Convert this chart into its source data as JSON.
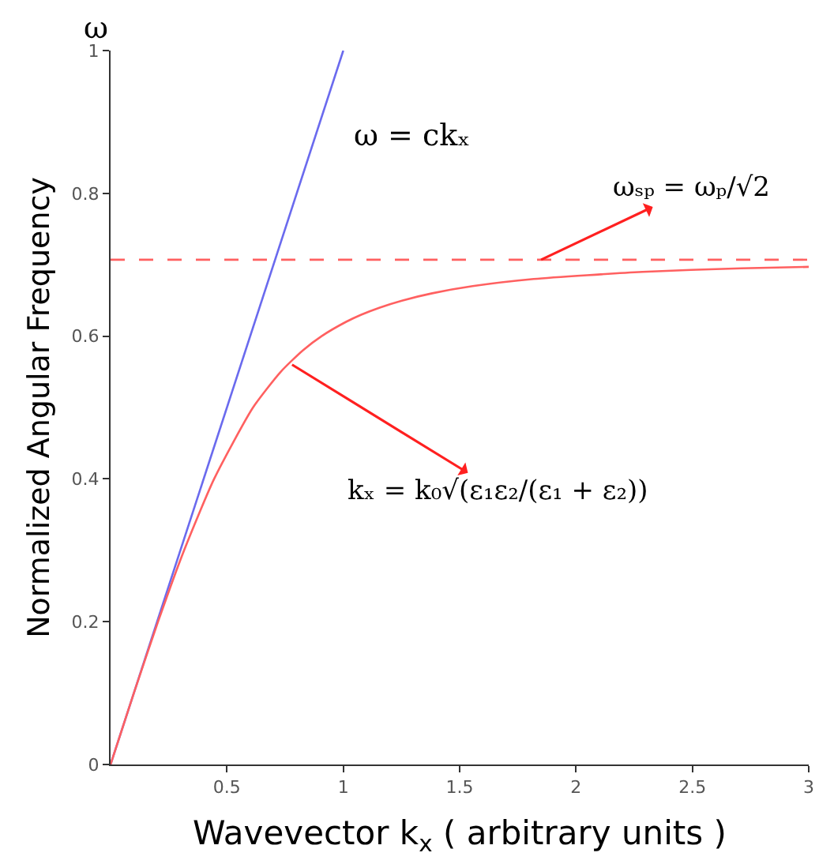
{
  "chart_data": {
    "type": "line",
    "xlabel": "Wavevector k$_{x}$ ( arbitrary units )",
    "ylabel": "Normalized Angular Frequency",
    "xlim": [
      0,
      3
    ],
    "xticks": [
      0.5,
      1,
      1.5,
      2,
      2.5,
      3
    ],
    "ylim": [
      0,
      1
    ],
    "yticks": [
      0,
      0.2,
      0.4,
      0.6,
      0.8,
      1
    ],
    "marker": "none",
    "series": [
      {
        "color": "#6a6aee",
        "x": [
          0,
          1
        ],
        "values": [
          0,
          1
        ]
      },
      {
        "color": "#ff6060",
        "x": [
          0,
          0.1,
          0.204,
          0.316,
          0.445,
          0.612,
          0.731,
          0.826,
          0.907,
          1.012,
          1.077,
          1.157,
          1.255,
          1.382,
          1.556,
          1.818,
          2.285,
          2.71,
          3.0
        ],
        "values": [
          0,
          0.1,
          0.2,
          0.3,
          0.4,
          0.5,
          0.55,
          0.58,
          0.6,
          0.62,
          0.63,
          0.64,
          0.65,
          0.66,
          0.67,
          0.68,
          0.69,
          0.695,
          0.697
        ]
      }
    ],
    "ref_lines": [
      {
        "axis": "y",
        "value": 0.707,
        "color": "#ff6060",
        "line_style": "dashed"
      }
    ],
    "annotations": [
      "ω",
      "ω = ckₓ",
      {
        "text": "ωₛₚ = ωₚ/√2",
        "x": 1.85,
        "y": 0.707
      },
      {
        "text": "kₓ = k₀√(ε₁ε₂/(ε₁ + ε₂))",
        "x": 0.78,
        "y": 0.56
      }
    ]
  }
}
